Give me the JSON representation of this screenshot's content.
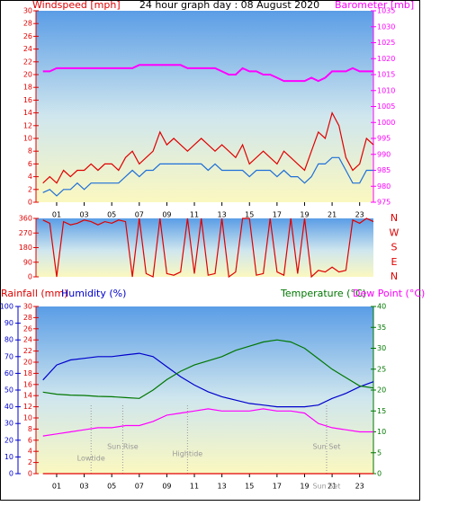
{
  "chart_data": [
    {
      "type": "line",
      "title": "24 hour graph day : 08 August 2020",
      "ylabel": "Windspeed [mph]",
      "y2label": "Barometer [mb]",
      "x": [
        0,
        0.5,
        1,
        1.5,
        2,
        2.5,
        3,
        3.5,
        4,
        4.5,
        5,
        5.5,
        6,
        6.5,
        7,
        7.5,
        8,
        8.5,
        9,
        9.5,
        10,
        10.5,
        11,
        11.5,
        12,
        12.5,
        13,
        13.5,
        14,
        14.5,
        15,
        15.5,
        16,
        16.5,
        17,
        17.5,
        18,
        18.5,
        19,
        19.5,
        20,
        20.5,
        21,
        21.5,
        22,
        22.5,
        23,
        23.5,
        24
      ],
      "xlim": [
        -0.5,
        24
      ],
      "xticks": [
        {
          "value": 1,
          "label": "01"
        },
        {
          "value": 3,
          "label": "03"
        },
        {
          "value": 5,
          "label": "05"
        },
        {
          "value": 7,
          "label": "07"
        },
        {
          "value": 9,
          "label": "09"
        },
        11,
        13,
        15,
        17,
        19,
        21,
        23
      ],
      "ylim": [
        0,
        30
      ],
      "yticks": [
        0,
        2,
        4,
        6,
        8,
        10,
        12,
        14,
        16,
        18,
        20,
        22,
        24,
        26,
        28,
        30
      ],
      "y2lim": [
        975,
        1035
      ],
      "y2ticks": [
        975,
        980,
        985,
        990,
        995,
        1000,
        1005,
        1010,
        1015,
        1020,
        1025,
        1030,
        1035
      ],
      "series": [
        {
          "color": "#e00000",
          "values": [
            3,
            4,
            3,
            5,
            4,
            5,
            5,
            6,
            5,
            6,
            6,
            5,
            7,
            8,
            6,
            7,
            8,
            11,
            9,
            10,
            9,
            8,
            9,
            10,
            9,
            8,
            9,
            8,
            7,
            9,
            6,
            7,
            8,
            7,
            6,
            8,
            7,
            6,
            5,
            8,
            11,
            10,
            14,
            12,
            7,
            5,
            6,
            10,
            9
          ]
        },
        {
          "color": "#1e6fd9",
          "values": [
            1.5,
            2,
            1,
            2,
            2,
            3,
            2,
            3,
            3,
            3,
            3,
            3,
            4,
            5,
            4,
            5,
            5,
            6,
            6,
            6,
            6,
            6,
            6,
            6,
            5,
            6,
            5,
            5,
            5,
            5,
            4,
            5,
            5,
            5,
            4,
            5,
            4,
            4,
            3,
            4,
            6,
            6,
            7,
            7,
            5,
            3,
            3,
            5,
            5
          ]
        },
        {
          "color": "#ff00ff",
          "axis": "y2",
          "values": [
            1016,
            1016,
            1017,
            1017,
            1017,
            1017,
            1017,
            1017,
            1017,
            1017,
            1017,
            1017,
            1017,
            1017,
            1018,
            1018,
            1018,
            1018,
            1018,
            1018,
            1018,
            1017,
            1017,
            1017,
            1017,
            1017,
            1016,
            1015,
            1015,
            1017,
            1016,
            1016,
            1015,
            1015,
            1014,
            1013,
            1013,
            1013,
            1013,
            1014,
            1013,
            1014,
            1016,
            1016,
            1016,
            1017,
            1016,
            1016,
            1016
          ]
        }
      ]
    },
    {
      "type": "line",
      "x": [
        0,
        0.5,
        1,
        1.5,
        2,
        2.5,
        3,
        3.5,
        4,
        4.5,
        5,
        5.5,
        6,
        6.5,
        7,
        7.5,
        8,
        8.5,
        9,
        9.5,
        10,
        10.5,
        11,
        11.5,
        12,
        12.5,
        13,
        13.5,
        14,
        14.5,
        15,
        15.5,
        16,
        16.5,
        17,
        17.5,
        18,
        18.5,
        19,
        19.5,
        20,
        20.5,
        21,
        21.5,
        22,
        22.5,
        23,
        23.5,
        24
      ],
      "xlim": [
        -0.5,
        24
      ],
      "ylim": [
        0,
        360
      ],
      "yticks": [
        0,
        90,
        180,
        270,
        360
      ],
      "y2ticks": [
        {
          "value": 0,
          "label": "N"
        },
        {
          "value": 90,
          "label": "E"
        },
        {
          "value": 180,
          "label": "S"
        },
        {
          "value": 270,
          "label": "W"
        },
        {
          "value": 360,
          "label": "N"
        }
      ],
      "series": [
        {
          "color": "#e00000",
          "values": [
            350,
            330,
            0,
            340,
            320,
            330,
            350,
            340,
            320,
            340,
            330,
            350,
            340,
            0,
            360,
            20,
            0,
            360,
            20,
            10,
            30,
            360,
            20,
            360,
            10,
            20,
            360,
            0,
            30,
            360,
            360,
            10,
            20,
            360,
            30,
            10,
            360,
            20,
            360,
            0,
            40,
            30,
            60,
            30,
            40,
            350,
            330,
            360,
            340
          ]
        }
      ]
    },
    {
      "type": "line",
      "ylabel": "Rainfall (mm)",
      "hlabel": "Humidity (%)",
      "y2label": "Temperature (°C)",
      "dlabel": "Dew Point (°C)",
      "x": [
        0,
        1,
        2,
        3,
        4,
        5,
        6,
        7,
        8,
        9,
        10,
        11,
        12,
        13,
        14,
        15,
        16,
        17,
        18,
        19,
        20,
        21,
        22,
        23,
        24
      ],
      "xlim": [
        -0.5,
        24
      ],
      "xticks": [
        {
          "value": 1,
          "label": "01"
        },
        {
          "value": 3,
          "label": "03"
        },
        {
          "value": 5,
          "label": "05"
        },
        {
          "value": 7,
          "label": "07"
        },
        {
          "value": 9,
          "label": "09"
        },
        11,
        13,
        15,
        17,
        19,
        21,
        23
      ],
      "ylim": [
        0,
        30
      ],
      "yticks": [
        0,
        2,
        4,
        6,
        8,
        10,
        12,
        14,
        16,
        18,
        20,
        22,
        24,
        26,
        28,
        30
      ],
      "hlim": [
        0,
        100
      ],
      "hticks": [
        0,
        10,
        20,
        30,
        40,
        50,
        60,
        70,
        80,
        90,
        100
      ],
      "y2lim": [
        0,
        40
      ],
      "y2ticks": [
        0,
        5,
        10,
        15,
        20,
        25,
        30,
        35,
        40
      ],
      "series": [
        {
          "color": "#e00000",
          "axis": "y",
          "values": [
            0,
            0,
            0,
            0,
            0,
            0,
            0,
            0,
            0,
            0,
            0,
            0,
            0,
            0,
            0,
            0,
            0,
            0,
            0,
            0,
            0,
            0,
            0,
            0,
            0
          ]
        },
        {
          "color": "#0000cc",
          "axis": "h",
          "values": [
            56,
            65,
            68,
            69,
            70,
            70,
            71,
            72,
            70,
            64,
            58,
            53,
            49,
            46,
            44,
            42,
            41,
            40,
            40,
            40,
            41,
            45,
            48,
            52,
            55
          ]
        },
        {
          "color": "#007700",
          "axis": "y2",
          "values": [
            19.5,
            19,
            18.8,
            18.7,
            18.5,
            18.4,
            18.2,
            18,
            20,
            22.5,
            24.5,
            26,
            27,
            28,
            29.5,
            30.5,
            31.5,
            32,
            31.5,
            30,
            27.5,
            25,
            23,
            21,
            20.5
          ]
        },
        {
          "color": "#ff00ff",
          "axis": "y2",
          "values": [
            9,
            9.5,
            10,
            10.5,
            11,
            11,
            11.5,
            11.5,
            12.5,
            14,
            14.5,
            15,
            15.5,
            15,
            15,
            15,
            15.5,
            15,
            15,
            14.5,
            12,
            11,
            10.5,
            10,
            10
          ]
        }
      ],
      "events": [
        {
          "label": "Lowtide",
          "x": 3.5
        },
        {
          "label": "Sun Rise",
          "x": 5.8
        },
        {
          "label": "Hightide",
          "x": 10.5
        },
        {
          "label": "Sun Set",
          "x": 20.6
        },
        {
          "label": "Sun Set",
          "x": 20.6
        }
      ]
    }
  ]
}
